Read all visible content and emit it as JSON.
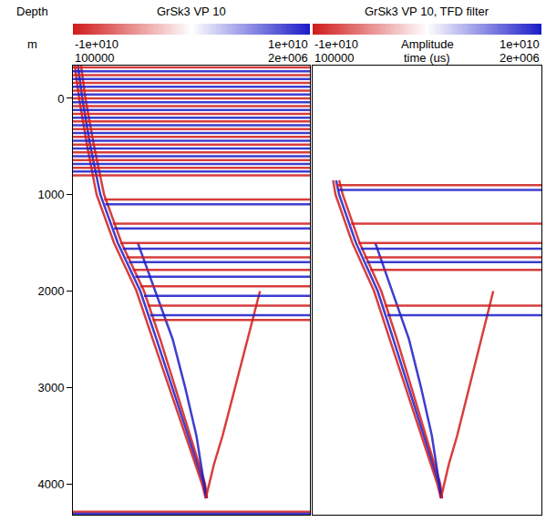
{
  "chart_data": [
    {
      "type": "line",
      "title": "GrSk3 VP 10",
      "y_label": "Depth",
      "y_unit": "m",
      "xlim": [
        100000,
        2000000
      ],
      "xticks": [
        {
          "value": 100000,
          "label": "100000"
        },
        {
          "value": 2000000,
          "label": "2e+006"
        }
      ],
      "ylim": [
        4320,
        -340
      ],
      "yticks": [
        0,
        1000,
        2000,
        3000,
        4000
      ],
      "colorbar": {
        "range": [
          -10000000000,
          10000000000
        ],
        "ticks": [
          {
            "value": -10000000000,
            "label": "-1e+010"
          },
          {
            "value": 10000000000,
            "label": "1e+010"
          }
        ],
        "colors": [
          "#d01c1c",
          "#ffffff",
          "#1c1cc8"
        ]
      },
      "series": [
        {
          "color": "#d01c1c",
          "x": [
            115000,
            150000,
            215000,
            290000,
            430000,
            610000,
            740000,
            870000,
            1000000,
            1135000,
            1165000
          ],
          "values": [
            -340,
            0,
            500,
            1000,
            1500,
            2000,
            2500,
            3000,
            3500,
            4000,
            4150
          ]
        },
        {
          "color": "#1c1cc8",
          "x": [
            140000,
            175000,
            240000,
            320000,
            460000,
            640000,
            770000,
            895000,
            1020000,
            1150000,
            1170000
          ],
          "values": [
            -340,
            0,
            500,
            1000,
            1500,
            2000,
            2500,
            3000,
            3500,
            4000,
            4150
          ]
        },
        {
          "color": "#d01c1c",
          "x": [
            165000,
            200000,
            270000,
            350000,
            490000,
            670000,
            800000,
            920000,
            1040000,
            1160000,
            1175000
          ],
          "values": [
            -340,
            0,
            500,
            1000,
            1500,
            2000,
            2500,
            3000,
            3500,
            4000,
            4150
          ]
        },
        {
          "color": "#1c1cc8",
          "x": [
            620000,
            760000,
            900000,
            1000000,
            1090000,
            1170000
          ],
          "values": [
            1500,
            2000,
            2500,
            3000,
            3500,
            4150
          ]
        },
        {
          "color": "#d01c1c",
          "x": [
            1165000,
            1230000,
            1300000,
            1400000,
            1500000,
            1600000
          ],
          "values": [
            4150,
            3800,
            3500,
            3000,
            2500,
            2000
          ]
        },
        {
          "color": "#d01c1c",
          "x": [
            350000,
            2000000,
            null,
            420000,
            2000000,
            null,
            480000,
            2000000,
            null,
            530000,
            2000000,
            null,
            580000,
            2000000,
            null,
            640000,
            2000000,
            null,
            700000,
            2000000,
            null,
            740000,
            2000000
          ],
          "values": [
            1050,
            1050,
            null,
            1300,
            1300,
            null,
            1500,
            1500,
            null,
            1650,
            1650,
            null,
            1780,
            1780,
            null,
            1950,
            1950,
            null,
            2150,
            2150,
            null,
            2300,
            2300
          ]
        },
        {
          "color": "#1c1cc8",
          "x": [
            360000,
            2000000,
            null,
            430000,
            2000000,
            null,
            500000,
            2000000,
            null,
            550000,
            2000000,
            null,
            600000,
            2000000,
            null,
            670000,
            2000000,
            null,
            720000,
            2000000
          ],
          "values": [
            1100,
            1100,
            null,
            1350,
            1350,
            null,
            1560,
            1560,
            null,
            1700,
            1700,
            null,
            1850,
            1850,
            null,
            2050,
            2050,
            null,
            2250,
            2250
          ]
        },
        {
          "color": "#d01c1c",
          "x": [
            100000,
            2000000,
            null,
            100000,
            2000000,
            null,
            100000,
            2000000,
            null,
            100000,
            2000000,
            null,
            100000,
            2000000,
            null,
            100000,
            2000000,
            null,
            100000,
            2000000,
            null,
            100000,
            2000000,
            null,
            100000,
            2000000,
            null,
            100000,
            2000000,
            null,
            100000,
            2000000,
            null,
            100000,
            2000000,
            null,
            100000,
            2000000,
            null,
            100000,
            2000000,
            null,
            100000,
            2000000,
            null,
            100000,
            2000000
          ],
          "values": [
            -320,
            -320,
            null,
            -240,
            -240,
            null,
            -160,
            -160,
            null,
            -80,
            -80,
            null,
            0,
            0,
            null,
            80,
            80,
            null,
            160,
            160,
            null,
            240,
            240,
            null,
            320,
            320,
            null,
            400,
            400,
            null,
            480,
            480,
            null,
            560,
            560,
            null,
            640,
            640,
            null,
            720,
            720,
            null,
            800,
            800,
            null,
            4290,
            4290
          ]
        },
        {
          "color": "#1c1cc8",
          "x": [
            100000,
            2000000,
            null,
            100000,
            2000000,
            null,
            100000,
            2000000,
            null,
            100000,
            2000000,
            null,
            100000,
            2000000,
            null,
            100000,
            2000000,
            null,
            100000,
            2000000,
            null,
            100000,
            2000000,
            null,
            100000,
            2000000,
            null,
            100000,
            2000000,
            null,
            100000,
            2000000,
            null,
            100000,
            2000000,
            null,
            100000,
            2000000,
            null,
            100000,
            2000000,
            null,
            100000,
            2000000
          ],
          "values": [
            -280,
            -280,
            null,
            -200,
            -200,
            null,
            -120,
            -120,
            null,
            -40,
            -40,
            null,
            40,
            40,
            null,
            120,
            120,
            null,
            200,
            200,
            null,
            280,
            280,
            null,
            360,
            360,
            null,
            440,
            440,
            null,
            520,
            520,
            null,
            600,
            600,
            null,
            680,
            680,
            null,
            760,
            760,
            null,
            4310,
            4310
          ]
        }
      ]
    },
    {
      "type": "line",
      "title": "GrSk3 VP 10, TFD filter",
      "x_label": "time (us)",
      "colorbar_label": "Amplitude",
      "xlim": [
        100000,
        2000000
      ],
      "xticks": [
        {
          "value": 100000,
          "label": "100000"
        },
        {
          "value": 2000000,
          "label": "2e+006"
        }
      ],
      "ylim": [
        4320,
        -340
      ],
      "colorbar": {
        "range": [
          -10000000000,
          10000000000
        ],
        "ticks": [
          {
            "value": -10000000000,
            "label": "-1e+010"
          },
          {
            "value": 10000000000,
            "label": "1e+010"
          }
        ],
        "colors": [
          "#d01c1c",
          "#ffffff",
          "#1c1cc8"
        ]
      },
      "series": [
        {
          "color": "#d01c1c",
          "x": [
            270000,
            290000,
            430000,
            610000,
            740000,
            870000,
            1000000,
            1135000,
            1165000
          ],
          "values": [
            850,
            1000,
            1500,
            2000,
            2500,
            3000,
            3500,
            4000,
            4150
          ]
        },
        {
          "color": "#1c1cc8",
          "x": [
            295000,
            320000,
            460000,
            640000,
            770000,
            895000,
            1020000,
            1150000,
            1170000
          ],
          "values": [
            850,
            1000,
            1500,
            2000,
            2500,
            3000,
            3500,
            4000,
            4150
          ]
        },
        {
          "color": "#d01c1c",
          "x": [
            320000,
            350000,
            490000,
            670000,
            800000,
            920000,
            1040000,
            1160000,
            1175000
          ],
          "values": [
            850,
            1000,
            1500,
            2000,
            2500,
            3000,
            3500,
            4000,
            4150
          ]
        },
        {
          "color": "#1c1cc8",
          "x": [
            620000,
            760000,
            900000,
            1000000,
            1090000,
            1170000
          ],
          "values": [
            1500,
            2000,
            2500,
            3000,
            3500,
            4150
          ]
        },
        {
          "color": "#d01c1c",
          "x": [
            1165000,
            1230000,
            1300000,
            1400000,
            1500000,
            1600000
          ],
          "values": [
            4150,
            3800,
            3500,
            3000,
            2500,
            2000
          ]
        },
        {
          "color": "#d01c1c",
          "x": [
            300000,
            2000000,
            null,
            420000,
            2000000,
            null,
            480000,
            2000000,
            null,
            530000,
            2000000,
            null,
            580000,
            2000000,
            null,
            700000,
            2000000
          ],
          "values": [
            900,
            900,
            null,
            1300,
            1300,
            null,
            1500,
            1500,
            null,
            1650,
            1650,
            null,
            1780,
            1780,
            null,
            2150,
            2150
          ]
        },
        {
          "color": "#1c1cc8",
          "x": [
            310000,
            2000000,
            null,
            500000,
            2000000,
            null,
            550000,
            2000000,
            null,
            720000,
            2000000
          ],
          "values": [
            950,
            950,
            null,
            1560,
            1560,
            null,
            1700,
            1700,
            null,
            2250,
            2250
          ]
        }
      ]
    }
  ]
}
